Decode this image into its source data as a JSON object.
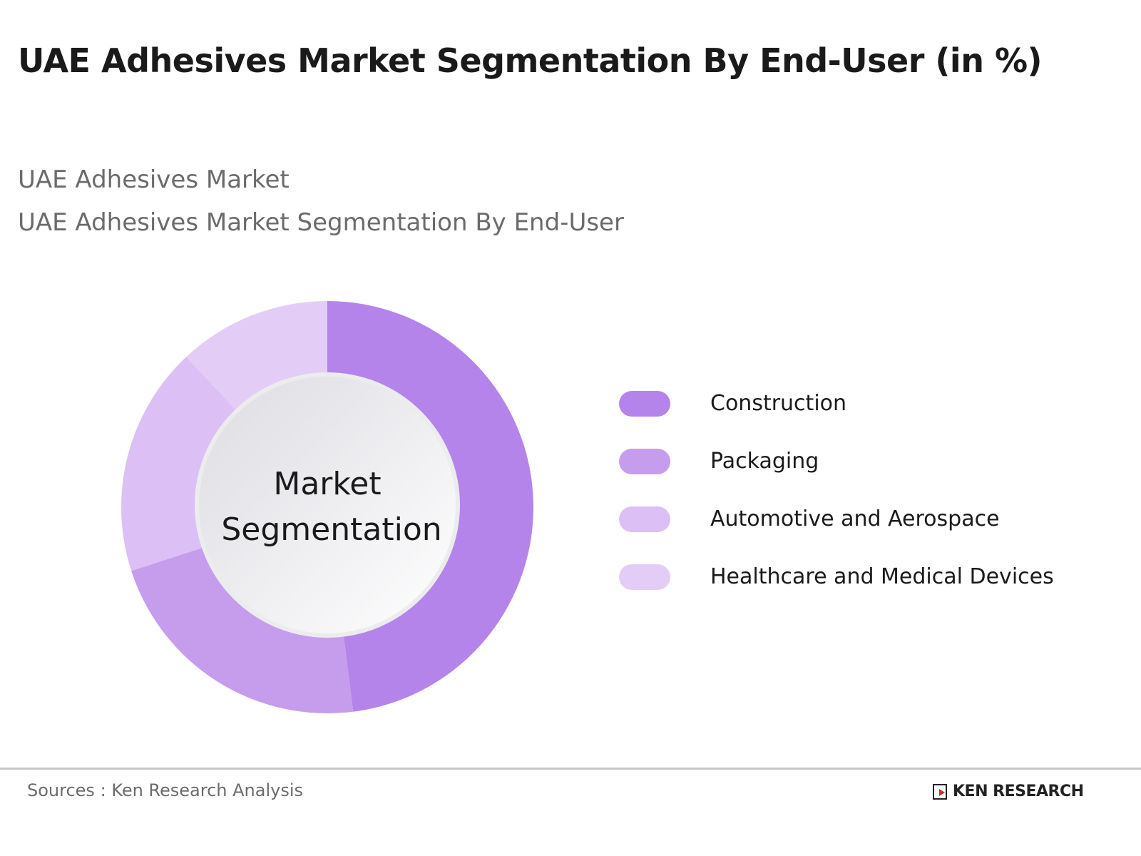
{
  "title": "UAE Adhesives Market Segmentation By End-User (in %)",
  "subtitle1": "UAE Adhesives Market",
  "subtitle2": "UAE Adhesives Market Segmentation By End-User",
  "source": "Sources : Ken Research Analysis",
  "logo_text": "KEN RESEARCH",
  "chart_data": {
    "type": "pie",
    "variant": "donut",
    "center_label": [
      "Market",
      "Segmentation"
    ],
    "categories": [
      "Construction",
      "Packaging",
      "Automotive and Aerospace",
      "Healthcare and Medical Devices"
    ],
    "values": [
      48,
      22,
      18,
      12
    ],
    "colors": [
      "#b584ea",
      "#c69ded",
      "#dcc0f5",
      "#e3cdf7"
    ],
    "start_angle": "12 o'clock, clockwise",
    "legend_placement": "right"
  }
}
